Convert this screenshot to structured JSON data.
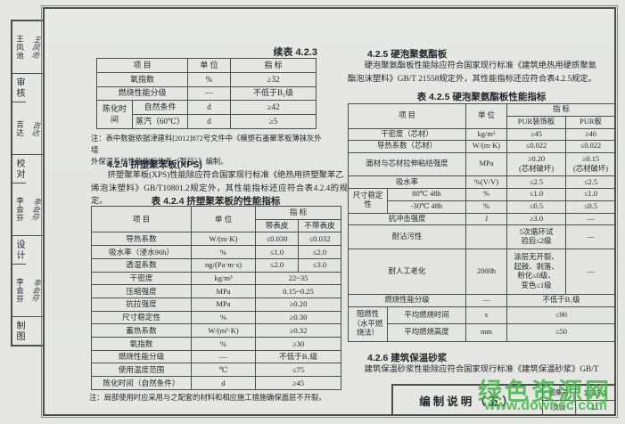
{
  "palette": {
    "paper": "#e5e6e2",
    "line": "#4a4f4b",
    "ink": "#24272b",
    "green": "#44b54c"
  },
  "sidebar": {
    "blocks": [
      {
        "name": "王凤池",
        "signature": "王凤池",
        "role": "审核"
      },
      {
        "name": "吉达",
        "signature": "吉达",
        "role": "校对"
      },
      {
        "name": "李会芬",
        "signature": "李会芬",
        "role": "设计"
      },
      {
        "name": "李会芬",
        "signature": "李会芬",
        "role": "制图"
      }
    ]
  },
  "left": {
    "cont_table_title": "续表 4.2.3",
    "table_423": {
      "rows": [
        [
          {
            "t": "项  目",
            "cs": 2
          },
          {
            "t": "单  位"
          },
          {
            "t": "指  标"
          }
        ],
        [
          {
            "t": "氧指数",
            "cs": 2
          },
          {
            "t": "%"
          },
          {
            "t": "≥32"
          }
        ],
        [
          {
            "t": "燃烧性能分级",
            "cs": 2
          },
          {
            "t": "—"
          },
          {
            "t": "不低于B₁级"
          }
        ],
        [
          {
            "t": "陈化时间",
            "rs": 2
          },
          {
            "t": "自然条件"
          },
          {
            "t": "d"
          },
          {
            "t": "≥42"
          }
        ],
        [
          {
            "t": "蒸汽（60℃）"
          },
          {
            "t": "d"
          },
          {
            "t": "≥5"
          }
        ]
      ]
    },
    "note_423": "注：表中数据依据津建科[2012]872号文件中《模塑石墨聚苯板薄抹灰外墙\n外保温系统性能指标体系（暂行）》编制。",
    "heading_424": "4.2.4 挤塑聚苯板(XPS)",
    "para_424": "挤塑聚苯板(XPS)性能除应符合国家现行标准《绝热用挤塑聚苯乙\n烯泡沫塑料》GB/T10801.2规定外，其性能指标还应符合表4.2.4的规定。",
    "table_424_title": "表 4.2.4 挤塑聚苯板的性能指标",
    "table_424": {
      "rows": [
        [
          {
            "t": "项  目",
            "rs": 2
          },
          {
            "t": "单  位",
            "rs": 2
          },
          {
            "t": "指  标",
            "cs": 2
          }
        ],
        [
          {
            "t": "带表皮"
          },
          {
            "t": "不带表皮"
          }
        ],
        [
          {
            "t": "导热系数"
          },
          {
            "t": "W/(m·K)"
          },
          {
            "t": "≤0.030"
          },
          {
            "t": "≤0.032"
          }
        ],
        [
          {
            "t": "吸水率（浸水96h）"
          },
          {
            "t": "%"
          },
          {
            "t": "≤1.0"
          },
          {
            "t": "≤2.0"
          }
        ],
        [
          {
            "t": "透湿系数"
          },
          {
            "t": "ng/(Pa·m·s)"
          },
          {
            "t": "≤2.0"
          },
          {
            "t": "≤3.0"
          }
        ],
        [
          {
            "t": "干密度"
          },
          {
            "t": "kg/m³"
          },
          {
            "t": "22~35",
            "cs": 2
          }
        ],
        [
          {
            "t": "压缩强度"
          },
          {
            "t": "MPa"
          },
          {
            "t": "0.15~0.25",
            "cs": 2
          }
        ],
        [
          {
            "t": "抗拉强度"
          },
          {
            "t": "MPa"
          },
          {
            "t": "≥0.20",
            "cs": 2
          }
        ],
        [
          {
            "t": "尺寸稳定性"
          },
          {
            "t": "%"
          },
          {
            "t": "≥0.30",
            "cs": 2
          }
        ],
        [
          {
            "t": "蓄热系数"
          },
          {
            "t": "W/(m²·K)"
          },
          {
            "t": "≥0.32",
            "cs": 2
          }
        ],
        [
          {
            "t": "氧指数"
          },
          {
            "t": "%"
          },
          {
            "t": "≥30",
            "cs": 2
          }
        ],
        [
          {
            "t": "燃烧性能分级"
          },
          {
            "t": "—"
          },
          {
            "t": "不低于B₁级",
            "cs": 2
          }
        ],
        [
          {
            "t": "使用温度范围"
          },
          {
            "t": "℃"
          },
          {
            "t": "≤75",
            "cs": 2
          }
        ],
        [
          {
            "t": "陈化时间（自然条件）"
          },
          {
            "t": "d"
          },
          {
            "t": "≥45",
            "cs": 2
          }
        ]
      ]
    },
    "note_424": "注：局部使用时应采用与之配套的材料和相应施工措施确保面层不开裂。"
  },
  "right": {
    "heading_425": "4.2.5 硬泡聚氨酯板",
    "para_425": "硬泡聚氨酯板性能除应符合国家现行标准《建筑绝热用硬质聚氨\n酯泡沫塑料》GB/T 21558规定外，其性能指标还应符合表4.2.5规定。",
    "table_425_title": "表 4.2.5 硬泡聚氨酯板性能指标",
    "table_425": {
      "rows": [
        [
          {
            "t": "项  目",
            "cs": 2,
            "rs": 2
          },
          {
            "t": "单  位",
            "rs": 2
          },
          {
            "t": "指  标",
            "cs": 2
          }
        ],
        [
          {
            "t": "PUR装饰板"
          },
          {
            "t": "PUR板"
          }
        ],
        [
          {
            "t": "干密度（芯材）",
            "cs": 2
          },
          {
            "t": "kg/m³"
          },
          {
            "t": "≥45"
          },
          {
            "t": "≥40"
          }
        ],
        [
          {
            "t": "导热系数（芯材）",
            "cs": 2
          },
          {
            "t": "W/(m·K)"
          },
          {
            "t": "≤0.022"
          },
          {
            "t": "≤0.022"
          }
        ],
        [
          {
            "t": "面材与芯材拉伸粘结强度",
            "cs": 2
          },
          {
            "t": "MPa"
          },
          {
            "t": "≥0.20\n(芯材破坏)"
          },
          {
            "t": "≥0.15\n(芯材破坏)"
          }
        ],
        [
          {
            "t": "吸水率",
            "cs": 2
          },
          {
            "t": "%(V/V)"
          },
          {
            "t": "≤2.5"
          },
          {
            "t": "≤2.5"
          }
        ],
        [
          {
            "t": "尺寸稳定性",
            "rs": 2
          },
          {
            "t": "80℃ 48h"
          },
          {
            "t": "%"
          },
          {
            "t": "≤1.0"
          },
          {
            "t": "≤1.0"
          }
        ],
        [
          {
            "t": "-30℃ 48h"
          },
          {
            "t": "%"
          },
          {
            "t": "≤0.5"
          },
          {
            "t": "≤0.5"
          }
        ],
        [
          {
            "t": "抗冲击强度",
            "cs": 2
          },
          {
            "t": "J"
          },
          {
            "t": "≥3.0"
          },
          {
            "t": "—"
          }
        ],
        [
          {
            "t": "耐沾污性",
            "cs": 2
          },
          {
            "t": ""
          },
          {
            "t": "5次循环试\n验后≤2级"
          },
          {
            "t": "—"
          }
        ],
        [
          {
            "t": "耐人工老化",
            "cs": 2
          },
          {
            "t": "2000h"
          },
          {
            "t": "涂层无开裂、\n起鼓、剥落、\n粉化≤0级、\n变色≤1级"
          },
          {
            "t": "—"
          }
        ],
        [
          {
            "t": "燃烧性能分级",
            "cs": 2
          },
          {
            "t": "—"
          },
          {
            "t": "不低于B₁级",
            "cs": 2
          }
        ],
        [
          {
            "t": "阻燃性\n（水平燃烧法）",
            "rs": 2
          },
          {
            "t": "平均燃烧时间"
          },
          {
            "t": "s"
          },
          {
            "t": "≤90",
            "cs": 2
          }
        ],
        [
          {
            "t": "平均燃烧高度"
          },
          {
            "t": "mm"
          },
          {
            "t": "≤50",
            "cs": 2
          }
        ]
      ]
    },
    "heading_426": "4.2.6 建筑保温砂浆",
    "para_426": "建筑保温砂浆性能除应符合国家现行标准《建筑保温砂浆》GB/T"
  },
  "footer": {
    "title": "编制说明（五）",
    "atlas_label": "图集号",
    "atlas_no": "12J3-1",
    "page_label": "页次",
    "page_no": "11"
  },
  "watermark": {
    "site": "绿色资源网",
    "url": "www.downcc.com"
  }
}
